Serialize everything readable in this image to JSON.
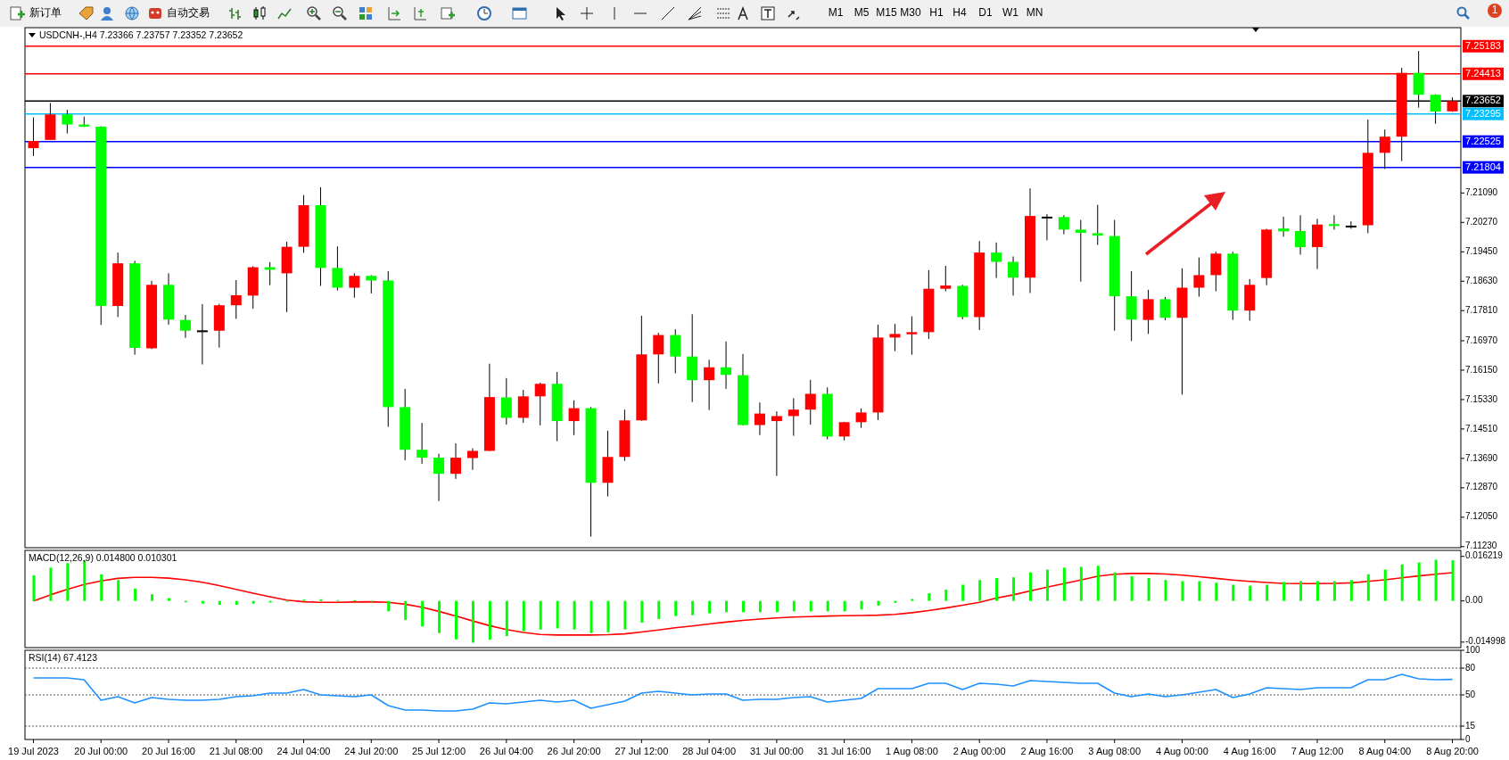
{
  "chart_data": [
    {
      "type": "other",
      "annotations": [
        "新订单",
        "自动交易",
        "M1",
        "M5",
        "M15",
        "M30",
        "H1",
        "H4",
        "D1",
        "W1",
        "MN",
        "1"
      ]
    },
    {
      "type": "candlestick",
      "title": "USDCNH-,H4  7.23366 7.23757 7.23352 7.23652",
      "tick_labels": "y",
      "categories": [
        null,
        null,
        null,
        null,
        null,
        null,
        null,
        null,
        null,
        null,
        null,
        null,
        null,
        null,
        null,
        null,
        null,
        null,
        null,
        null,
        null,
        null,
        null,
        null,
        null,
        null,
        null,
        null,
        null,
        null,
        null,
        null,
        null,
        null,
        null,
        null,
        null,
        null,
        null,
        null,
        null,
        null,
        null,
        null,
        null,
        null,
        null,
        null,
        null,
        null,
        null,
        null,
        null,
        null,
        null,
        null,
        null,
        null,
        null,
        null,
        null,
        null,
        null,
        null,
        null,
        null,
        null,
        null,
        null,
        null,
        null,
        null,
        null,
        null,
        null,
        null,
        null,
        null,
        null,
        null,
        null,
        null,
        null,
        null,
        null
      ],
      "ohlc": [
        [
          7.2234,
          7.232,
          7.2212,
          7.2254
        ],
        [
          7.2257,
          7.236,
          7.2257,
          7.2328
        ],
        [
          7.2328,
          7.2341,
          7.2275,
          7.23
        ],
        [
          7.23,
          7.2322,
          7.2293,
          7.2294
        ],
        [
          7.2294,
          7.2295,
          7.1741,
          7.1794
        ],
        [
          7.1794,
          7.1943,
          7.1763,
          7.1913
        ],
        [
          7.1913,
          7.192,
          7.1658,
          7.1677
        ],
        [
          7.1676,
          7.1864,
          7.1674,
          7.1853
        ],
        [
          7.1853,
          7.1885,
          7.1742,
          7.1756
        ],
        [
          7.1755,
          7.1769,
          7.1705,
          7.1725
        ],
        [
          7.1726,
          7.1799,
          7.1631,
          7.1726
        ],
        [
          7.1725,
          7.18,
          7.1678,
          7.1796
        ],
        [
          7.1796,
          7.1866,
          7.1758,
          7.1824
        ],
        [
          7.1823,
          7.1905,
          7.1786,
          7.1902
        ],
        [
          7.1902,
          7.1916,
          7.1852,
          7.1895
        ],
        [
          7.1885,
          7.1973,
          7.1777,
          7.1959
        ],
        [
          7.1959,
          7.2103,
          7.1942,
          7.2075
        ],
        [
          7.2075,
          7.2125,
          7.185,
          7.19
        ],
        [
          7.19,
          7.196,
          7.1837,
          7.1845
        ],
        [
          7.1845,
          7.1885,
          7.1817,
          7.1878
        ],
        [
          7.1878,
          7.188,
          7.1829,
          7.1865
        ],
        [
          7.1865,
          7.1891,
          7.1457,
          7.1512
        ],
        [
          7.1512,
          7.1563,
          7.1364,
          7.1393
        ],
        [
          7.1393,
          7.1468,
          7.1354,
          7.1371
        ],
        [
          7.1371,
          7.1382,
          7.125,
          7.1326
        ],
        [
          7.1326,
          7.1411,
          7.1312,
          7.1371
        ],
        [
          7.137,
          7.1397,
          7.1337,
          7.139
        ],
        [
          7.139,
          7.1633,
          7.1389,
          7.154
        ],
        [
          7.1539,
          7.1593,
          7.1463,
          7.1482
        ],
        [
          7.1482,
          7.156,
          7.1468,
          7.1542
        ],
        [
          7.1542,
          7.158,
          7.1461,
          7.1577
        ],
        [
          7.1577,
          7.161,
          7.1417,
          7.1473
        ],
        [
          7.1473,
          7.1531,
          7.1434,
          7.1509
        ],
        [
          7.1509,
          7.1512,
          7.1151,
          7.1301
        ],
        [
          7.1301,
          7.1446,
          7.1263,
          7.1373
        ],
        [
          7.1373,
          7.1505,
          7.1362,
          7.1475
        ],
        [
          7.1475,
          7.1767,
          7.1474,
          7.1659
        ],
        [
          7.1659,
          7.1719,
          7.1578,
          7.1713
        ],
        [
          7.1713,
          7.1729,
          7.1606,
          7.1653
        ],
        [
          7.1653,
          7.1771,
          7.1526,
          7.1587
        ],
        [
          7.1587,
          7.1644,
          7.1504,
          7.1623
        ],
        [
          7.1623,
          7.1695,
          7.1563,
          7.1602
        ],
        [
          7.1601,
          7.166,
          7.1461,
          7.1462
        ],
        [
          7.1462,
          7.1525,
          7.1434,
          7.1494
        ],
        [
          7.1473,
          7.15,
          7.132,
          7.1487
        ],
        [
          7.1487,
          7.1537,
          7.1432,
          7.1505
        ],
        [
          7.1505,
          7.1588,
          7.1463,
          7.1549
        ],
        [
          7.1549,
          7.1567,
          7.1422,
          7.143
        ],
        [
          7.143,
          7.1471,
          7.1419,
          7.147
        ],
        [
          7.147,
          7.1508,
          7.1454,
          7.1497
        ],
        [
          7.1497,
          7.1742,
          7.1476,
          7.1706
        ],
        [
          7.1706,
          7.1744,
          7.1668,
          7.1716
        ],
        [
          7.1715,
          7.1765,
          7.1658,
          7.1721
        ],
        [
          7.1721,
          7.1894,
          7.1702,
          7.1842
        ],
        [
          7.1842,
          7.1906,
          7.1835,
          7.1851
        ],
        [
          7.185,
          7.1853,
          7.1757,
          7.1763
        ],
        [
          7.1763,
          7.1975,
          7.1727,
          7.1943
        ],
        [
          7.1943,
          7.1971,
          7.1872,
          7.1917
        ],
        [
          7.1917,
          7.1932,
          7.1823,
          7.1873
        ],
        [
          7.1873,
          7.2122,
          7.183,
          7.2045
        ],
        [
          7.2043,
          7.205,
          7.1977,
          7.2043
        ],
        [
          7.2042,
          7.2047,
          7.1994,
          7.2007
        ],
        [
          7.2007,
          7.2034,
          7.1862,
          7.1998
        ],
        [
          7.1997,
          7.2076,
          7.1964,
          7.199
        ],
        [
          7.1989,
          7.2034,
          7.1725,
          7.1821
        ],
        [
          7.1821,
          7.1891,
          7.1696,
          7.1756
        ],
        [
          7.1755,
          7.1839,
          7.1716,
          7.1813
        ],
        [
          7.1813,
          7.1819,
          7.1754,
          7.1761
        ],
        [
          7.1761,
          7.1899,
          7.1547,
          7.1845
        ],
        [
          7.1845,
          7.1929,
          7.182,
          7.188
        ],
        [
          7.188,
          7.1945,
          7.1835,
          7.194
        ],
        [
          7.194,
          7.1945,
          7.1755,
          7.1781
        ],
        [
          7.1781,
          7.1869,
          7.1753,
          7.1853
        ],
        [
          7.1872,
          7.2009,
          7.1852,
          7.2007
        ],
        [
          7.201,
          7.2043,
          7.1987,
          7.2002
        ],
        [
          7.2003,
          7.2047,
          7.1937,
          7.1958
        ],
        [
          7.1958,
          7.2037,
          7.1897,
          7.2021
        ],
        [
          7.2022,
          7.2047,
          7.2007,
          7.2017
        ],
        [
          7.2018,
          7.203,
          7.2009,
          7.2018
        ],
        [
          7.2019,
          7.2314,
          7.1997,
          7.2221
        ],
        [
          7.2221,
          7.2286,
          7.2176,
          7.2266
        ],
        [
          7.2266,
          7.2458,
          7.2198,
          7.2444
        ],
        [
          7.2444,
          7.2505,
          7.2347,
          7.2383
        ],
        [
          7.2383,
          7.2384,
          7.2302,
          7.2336
        ],
        [
          7.23366,
          7.23757,
          7.23352,
          7.23652
        ]
      ],
      "colors": [
        "#ff0000",
        "#ff0000",
        "#00ff00",
        "#00ff00",
        "#00ff00",
        "#ff0000",
        "#00ff00",
        "#ff0000",
        "#00ff00",
        "#00ff00",
        "#000000",
        "#ff0000",
        "#ff0000",
        "#ff0000",
        "#00ff00",
        "#ff0000",
        "#ff0000",
        "#00ff00",
        "#00ff00",
        "#ff0000",
        "#00ff00",
        "#00ff00",
        "#00ff00",
        "#00ff00",
        "#00ff00",
        "#ff0000",
        "#ff0000",
        "#ff0000",
        "#00ff00",
        "#ff0000",
        "#ff0000",
        "#00ff00",
        "#ff0000",
        "#00ff00",
        "#ff0000",
        "#ff0000",
        "#ff0000",
        "#ff0000",
        "#00ff00",
        "#00ff00",
        "#ff0000",
        "#00ff00",
        "#00ff00",
        "#ff0000",
        "#ff0000",
        "#ff0000",
        "#ff0000",
        "#00ff00",
        "#ff0000",
        "#ff0000",
        "#ff0000",
        "#ff0000",
        "#ff0000",
        "#ff0000",
        "#ff0000",
        "#00ff00",
        "#ff0000",
        "#00ff00",
        "#00ff00",
        "#ff0000",
        "#000000",
        "#00ff00",
        "#00ff00",
        "#00ff00",
        "#00ff00",
        "#00ff00",
        "#ff0000",
        "#00ff00",
        "#ff0000",
        "#ff0000",
        "#ff0000",
        "#00ff00",
        "#ff0000",
        "#ff0000",
        "#00ff00",
        "#00ff00",
        "#ff0000",
        "#00ff00",
        "#000000",
        "#ff0000",
        "#ff0000",
        "#ff0000",
        "#00ff00",
        "#00ff00",
        "#ff0000"
      ],
      "ylim": [
        7.112,
        7.257
      ],
      "yticks": [
        {
          "value": 7.1123,
          "label": "7.11230"
        },
        {
          "value": 7.1205,
          "label": "7.12050"
        },
        {
          "value": 7.1287,
          "label": "7.12870"
        },
        {
          "value": 7.1369,
          "label": "7.13690"
        },
        {
          "value": 7.1451,
          "label": "7.14510"
        },
        {
          "value": 7.1533,
          "label": "7.15330"
        },
        {
          "value": 7.1615,
          "label": "7.16150"
        },
        {
          "value": 7.1697,
          "label": "7.16970"
        },
        {
          "value": 7.1781,
          "label": "7.17810"
        },
        {
          "value": 7.1863,
          "label": "7.18630"
        },
        {
          "value": 7.1945,
          "label": "7.19450"
        },
        {
          "value": 7.2027,
          "label": "7.20270"
        },
        {
          "value": 7.2109,
          "label": "7.21090"
        }
      ],
      "ref_lines": [
        {
          "axis": "y",
          "value": 7.25183,
          "label": "7.25183",
          "color": "#ff0000"
        },
        {
          "axis": "y",
          "value": 7.24413,
          "label": "7.24413",
          "color": "#ff0000"
        },
        {
          "axis": "y",
          "value": 7.23652,
          "label": "7.23652",
          "color": "#000000"
        },
        {
          "axis": "y",
          "value": 7.23295,
          "label": "7.23295",
          "color": "#00bfff"
        },
        {
          "axis": "y",
          "value": 7.22525,
          "label": "7.22525",
          "color": "#0000ff"
        },
        {
          "axis": "y",
          "value": 7.21804,
          "label": "7.21804",
          "color": "#0000ff"
        }
      ]
    },
    {
      "type": "bar",
      "title": "MACD(12,26,9) 0.014800 0.010301",
      "tick_labels": "y",
      "categories": [
        null,
        null,
        null,
        null,
        null,
        null,
        null,
        null,
        null,
        null,
        null,
        null,
        null,
        null,
        null,
        null,
        null,
        null,
        null,
        null,
        null,
        null,
        null,
        null,
        null,
        null,
        null,
        null,
        null,
        null,
        null,
        null,
        null,
        null,
        null,
        null,
        null,
        null,
        null,
        null,
        null,
        null,
        null,
        null,
        null,
        null,
        null,
        null,
        null,
        null,
        null,
        null,
        null,
        null,
        null,
        null,
        null,
        null,
        null,
        null,
        null,
        null,
        null,
        null,
        null,
        null,
        null,
        null,
        null,
        null,
        null,
        null,
        null,
        null,
        null,
        null,
        null,
        null,
        null,
        null,
        null,
        null,
        null,
        null,
        null
      ],
      "series": [
        {
          "color": "#00ff00",
          "values": [
            0.0093,
            0.0121,
            0.0138,
            0.0148,
            0.0097,
            0.0076,
            0.0045,
            0.0024,
            0.001,
            -0.0005,
            -0.001,
            -0.0014,
            -0.0014,
            -0.001,
            -0.0006,
            -0.0002,
            0.0005,
            0.0006,
            0.0003,
            0.0002,
            0.0,
            -0.0038,
            -0.0069,
            -0.0093,
            -0.0117,
            -0.014,
            -0.0152,
            -0.0141,
            -0.0128,
            -0.011,
            -0.0104,
            -0.01,
            -0.0104,
            -0.0117,
            -0.0114,
            -0.0104,
            -0.0079,
            -0.0066,
            -0.0055,
            -0.0052,
            -0.0045,
            -0.0041,
            -0.0041,
            -0.0041,
            -0.0041,
            -0.0038,
            -0.0038,
            -0.0038,
            -0.0038,
            -0.0031,
            -0.0017,
            -0.0007,
            0.0007,
            0.0028,
            0.0041,
            0.0059,
            0.0076,
            0.0083,
            0.0086,
            0.0104,
            0.0114,
            0.0121,
            0.0124,
            0.0128,
            0.0104,
            0.009,
            0.0083,
            0.0076,
            0.0072,
            0.0072,
            0.0066,
            0.0059,
            0.0055,
            0.0059,
            0.0069,
            0.0072,
            0.0072,
            0.0072,
            0.0076,
            0.0097,
            0.0114,
            0.0133,
            0.014,
            0.015,
            0.0148
          ]
        }
      ],
      "ylim": [
        -0.017,
        0.0184
      ],
      "yticks": [
        {
          "value": 0.016219,
          "label": "0.016219"
        },
        {
          "value": 0,
          "label": "0.00"
        },
        {
          "value": -0.014998,
          "label": "-0.014998"
        }
      ]
    },
    {
      "type": "line",
      "tick_labels": false,
      "categories": [
        null,
        null,
        null,
        null,
        null,
        null,
        null,
        null,
        null,
        null,
        null,
        null,
        null,
        null,
        null,
        null,
        null,
        null,
        null,
        null,
        null,
        null,
        null,
        null,
        null,
        null,
        null,
        null,
        null,
        null,
        null,
        null,
        null,
        null,
        null,
        null,
        null,
        null,
        null,
        null,
        null,
        null,
        null,
        null,
        null,
        null,
        null,
        null,
        null,
        null,
        null,
        null,
        null,
        null,
        null,
        null,
        null,
        null,
        null,
        null,
        null,
        null,
        null,
        null,
        null,
        null,
        null,
        null,
        null,
        null,
        null,
        null,
        null,
        null,
        null,
        null,
        null,
        null,
        null,
        null,
        null,
        null,
        null,
        null,
        null
      ],
      "series": [
        {
          "color": "#ff0000",
          "values": [
            0.0,
            0.0022,
            0.0042,
            0.006,
            0.0073,
            0.0082,
            0.0086,
            0.0086,
            0.0083,
            0.0077,
            0.0068,
            0.0056,
            0.0042,
            0.0028,
            0.0015,
            0.0003,
            -0.0003,
            -0.0005,
            -0.0005,
            -0.0004,
            -0.0003,
            -0.0005,
            -0.0012,
            -0.0023,
            -0.0038,
            -0.0055,
            -0.0073,
            -0.009,
            -0.0104,
            -0.0115,
            -0.0122,
            -0.0124,
            -0.0124,
            -0.0124,
            -0.0123,
            -0.012,
            -0.0113,
            -0.0106,
            -0.0098,
            -0.0091,
            -0.0084,
            -0.0077,
            -0.0071,
            -0.0066,
            -0.0062,
            -0.0059,
            -0.0057,
            -0.0055,
            -0.0054,
            -0.0053,
            -0.0052,
            -0.0049,
            -0.0043,
            -0.0035,
            -0.0026,
            -0.0016,
            -0.0005,
            0.001,
            0.0022,
            0.0036,
            0.005,
            0.0063,
            0.0076,
            0.009,
            0.0097,
            0.01,
            0.01,
            0.0098,
            0.0094,
            0.0088,
            0.0082,
            0.0076,
            0.0071,
            0.0067,
            0.0064,
            0.0063,
            0.0063,
            0.0064,
            0.0066,
            0.0071,
            0.0077,
            0.0084,
            0.0091,
            0.0097,
            0.010301
          ]
        }
      ],
      "ylim": [
        -0.017,
        0.0184
      ]
    },
    {
      "type": "line",
      "title": "RSI(14) 67.4123",
      "categories": [
        "19 Jul 2023",
        null,
        null,
        null,
        "20 Jul 00:00",
        null,
        null,
        null,
        "20 Jul 16:00",
        null,
        null,
        null,
        "21 Jul 08:00",
        null,
        null,
        null,
        "24 Jul 04:00",
        null,
        null,
        null,
        "24 Jul 20:00",
        null,
        null,
        null,
        "25 Jul 12:00",
        null,
        null,
        null,
        "26 Jul 04:00",
        null,
        null,
        null,
        "26 Jul 20:00",
        null,
        null,
        null,
        "27 Jul 12:00",
        null,
        null,
        null,
        "28 Jul 04:00",
        null,
        null,
        null,
        "31 Jul 00:00",
        null,
        null,
        null,
        "31 Jul 16:00",
        null,
        null,
        null,
        "1 Aug 08:00",
        null,
        null,
        null,
        "2 Aug 00:00",
        null,
        null,
        null,
        "2 Aug 16:00",
        null,
        null,
        null,
        "3 Aug 08:00",
        null,
        null,
        null,
        "4 Aug 00:00",
        null,
        null,
        null,
        "4 Aug 16:00",
        null,
        null,
        null,
        "7 Aug 12:00",
        null,
        null,
        null,
        "8 Aug 04:00",
        null,
        null,
        null,
        "8 Aug 20:00"
      ],
      "series": [
        {
          "color": "#1e90ff",
          "values": [
            69,
            69,
            69,
            67,
            44,
            48,
            41,
            47,
            45,
            44,
            44,
            45,
            48,
            49,
            52,
            52,
            56,
            50,
            49,
            48,
            50,
            38,
            33,
            33,
            32,
            32,
            34,
            41,
            40,
            42,
            44,
            42,
            44,
            35,
            39,
            43,
            52,
            54,
            52,
            50,
            51,
            51,
            44,
            45,
            45,
            47,
            48,
            42,
            44,
            46,
            57,
            57,
            57,
            63,
            63,
            56,
            63,
            62,
            60,
            66,
            65,
            64,
            63,
            63,
            52,
            48,
            51,
            48,
            50,
            53,
            56,
            47,
            51,
            58,
            57,
            56,
            58,
            58,
            58,
            67,
            67,
            73,
            68,
            67,
            67.4123
          ]
        }
      ],
      "ylim": [
        0,
        100
      ],
      "yticks": [
        100,
        80,
        50,
        15,
        0
      ],
      "ref_lines": [
        {
          "axis": "y",
          "value": 80,
          "color": "#555555",
          "line_style": "dotted"
        },
        {
          "axis": "y",
          "value": 50,
          "color": "#555555",
          "line_style": "dotted"
        },
        {
          "axis": "y",
          "value": 15,
          "color": "#555555",
          "line_style": "dotted"
        }
      ]
    }
  ]
}
